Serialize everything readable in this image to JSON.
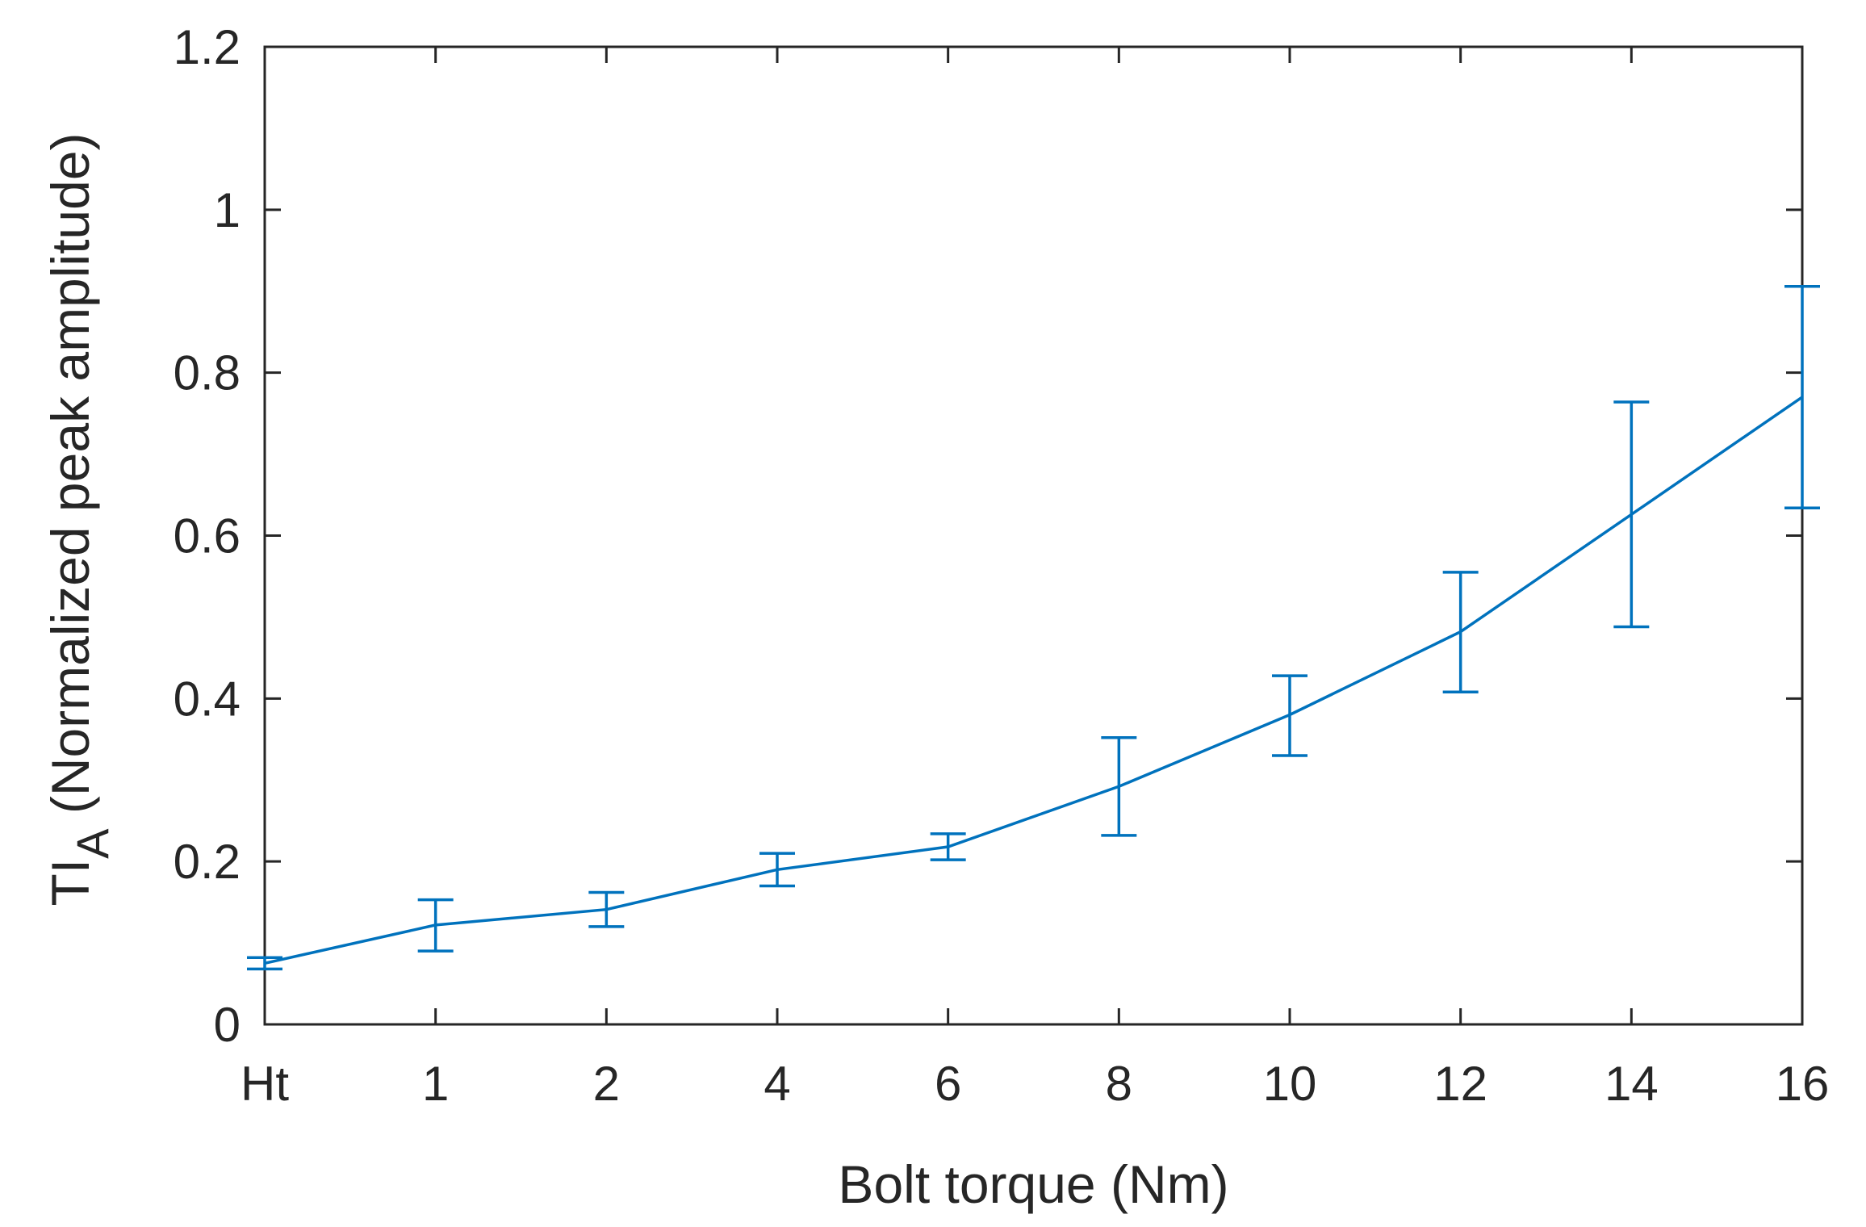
{
  "chart_data": {
    "type": "line",
    "categories": [
      "Ht",
      "1",
      "2",
      "4",
      "6",
      "8",
      "10",
      "12",
      "14",
      "16"
    ],
    "values": [
      0.075,
      0.122,
      0.141,
      0.19,
      0.218,
      0.292,
      0.38,
      0.482,
      0.626,
      0.77
    ],
    "error_lower": [
      0.068,
      0.09,
      0.12,
      0.17,
      0.202,
      0.232,
      0.33,
      0.408,
      0.488,
      0.634
    ],
    "error_upper": [
      0.082,
      0.153,
      0.162,
      0.21,
      0.234,
      0.352,
      0.428,
      0.555,
      0.764,
      0.906
    ],
    "xlabel": "Bolt torque (Nm)",
    "ylabel": {
      "main": "TI",
      "subscript": "A",
      "rest": " (Normalized peak amplitude)"
    },
    "ylim": [
      0,
      1.2
    ],
    "yticks": [
      "0",
      "0.2",
      "0.4",
      "0.6",
      "0.8",
      "1",
      "1.2"
    ],
    "grid": false,
    "line_color": "#0072bd",
    "axis_color": "#262626"
  }
}
